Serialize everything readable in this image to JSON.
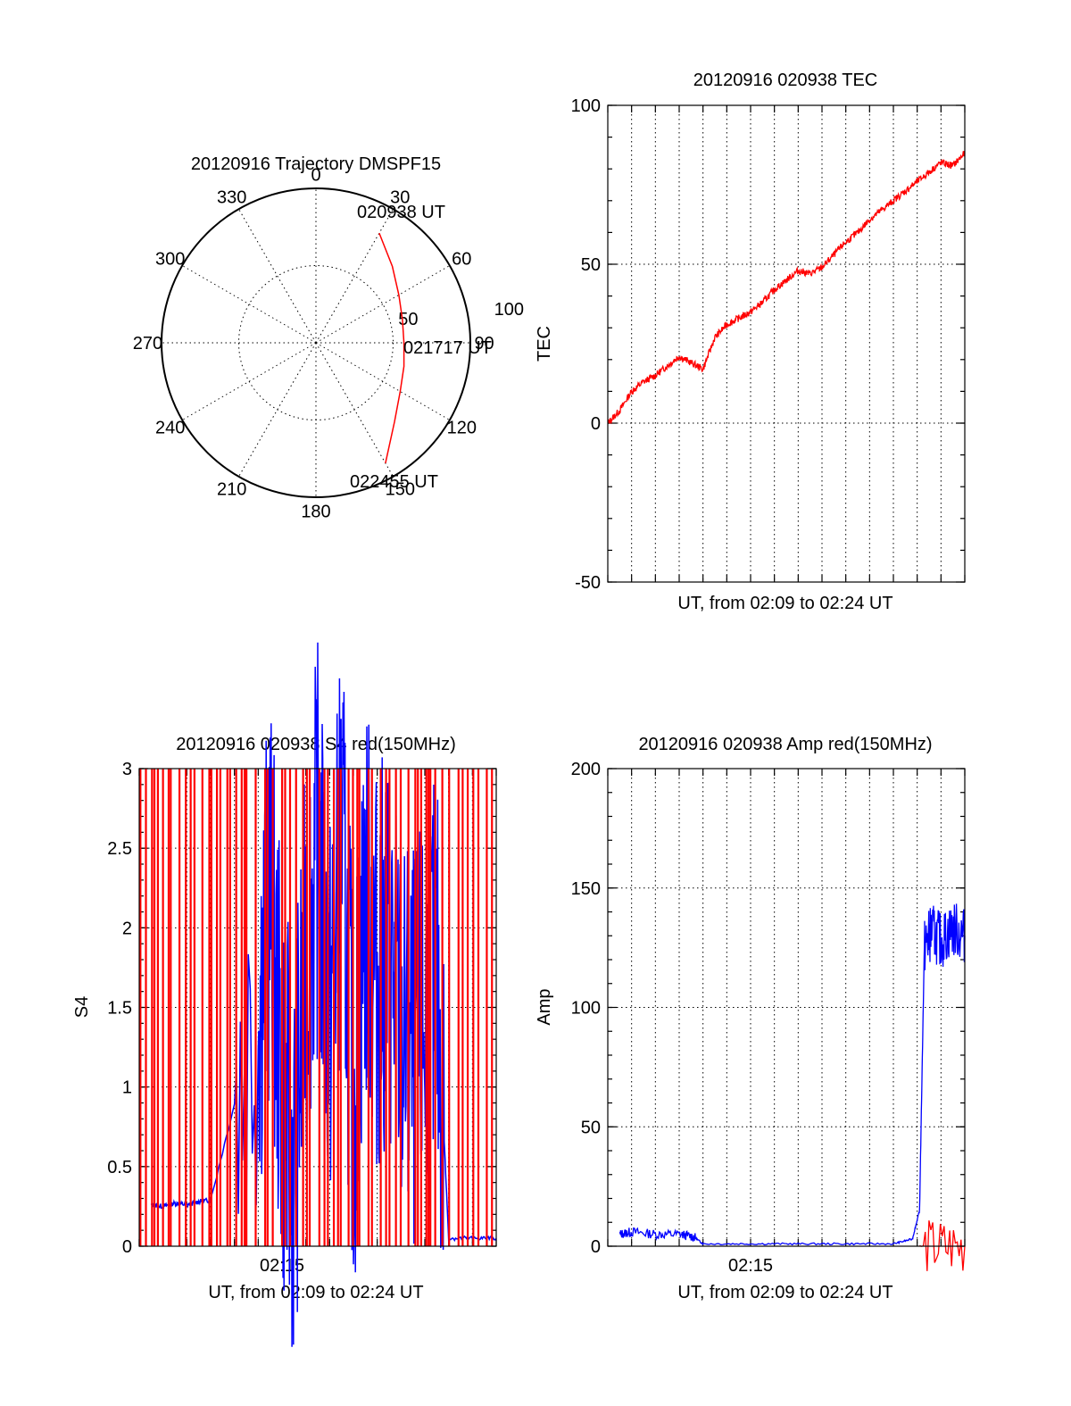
{
  "chart_data": [
    {
      "type": "polar",
      "title": "20120916 Trajectory DMSPF15",
      "azimuth_labels": [
        "0",
        "30",
        "60",
        "90",
        "120",
        "150",
        "180",
        "210",
        "240",
        "270",
        "300",
        "330"
      ],
      "radius_labels": [
        "50",
        "100"
      ],
      "radius_range": [
        0,
        100
      ],
      "grid": true,
      "annotations": [
        "020938 UT",
        "021717 UT",
        "022455 UT"
      ],
      "series": [
        {
          "color": "#ff0000",
          "points": [
            {
              "az": 30,
              "r": 82
            },
            {
              "az": 45,
              "r": 70
            },
            {
              "az": 60,
              "r": 62
            },
            {
              "az": 75,
              "r": 58
            },
            {
              "az": 90,
              "r": 57
            },
            {
              "az": 105,
              "r": 59
            },
            {
              "az": 120,
              "r": 63
            },
            {
              "az": 135,
              "r": 72
            },
            {
              "az": 150,
              "r": 90
            }
          ]
        }
      ]
    },
    {
      "type": "line",
      "title": "20120916 020938 TEC",
      "xlabel": "UT, from 02:09 to 02:24 UT",
      "ylabel": "TEC",
      "ylim": [
        -50,
        100
      ],
      "yticks": [
        "-50",
        "0",
        "50",
        "100"
      ],
      "grid": true,
      "series": [
        {
          "color": "#ff0000",
          "x": [
            0,
            0.5,
            1,
            1.5,
            2,
            2.5,
            3,
            3.5,
            4,
            4.5,
            5,
            5.5,
            6,
            6.5,
            7,
            7.5,
            8,
            8.5,
            9,
            9.5,
            10,
            10.5,
            11,
            11.5,
            12,
            12.5,
            13,
            13.5,
            14,
            14.5,
            15
          ],
          "y": [
            0,
            4,
            10,
            13,
            15,
            18,
            21,
            19,
            17,
            27,
            31,
            33,
            35,
            38,
            42,
            45,
            48,
            47,
            49,
            53,
            57,
            60,
            64,
            67,
            70,
            73,
            76,
            79,
            82,
            81,
            85
          ]
        }
      ]
    },
    {
      "type": "line",
      "title": "20120916 020938 S4 red(150MHz)",
      "xlabel": "UT, from 02:09 to 02:24 UT",
      "ylabel": "S4",
      "xticklabels": [
        "02:15"
      ],
      "ylim": [
        0,
        3
      ],
      "yticks": [
        "0",
        "0.5",
        "1",
        "1.5",
        "2",
        "2.5",
        "3"
      ],
      "grid": true,
      "series": [
        {
          "color": "#0000ff",
          "x": [
            0.5,
            1,
            1.5,
            2,
            2.5,
            3,
            5,
            5.5,
            6,
            6.5,
            7,
            7.5,
            8,
            8.5,
            9,
            9.5,
            10,
            10.5,
            11,
            11.5,
            12,
            12.5,
            13,
            14,
            15
          ],
          "y": [
            0.26,
            0.25,
            0.27,
            0.26,
            0.28,
            0.29,
            1.5,
            2.2,
            1.0,
            0.5,
            1.8,
            2.5,
            1.4,
            2.6,
            0.9,
            2.2,
            1.7,
            1.9,
            1.3,
            1.2,
            1.4,
            1.7,
            0.05,
            0.05,
            0.05
          ]
        },
        {
          "color": "#ff0000",
          "style": "vertical dropouts",
          "values": [
            0,
            3
          ]
        }
      ]
    },
    {
      "type": "line",
      "title": "20120916 020938 Amp red(150MHz)",
      "xlabel": "UT, from 02:09 to 02:24 UT",
      "ylabel": "Amp",
      "xticklabels": [
        "02:15"
      ],
      "ylim": [
        0,
        200
      ],
      "yticks": [
        "0",
        "50",
        "100",
        "150",
        "200"
      ],
      "grid": true,
      "series": [
        {
          "color": "#0000ff",
          "x": [
            0.5,
            1,
            2,
            3,
            3.6,
            4,
            6,
            8,
            10,
            12,
            12.8,
            13.1,
            13.3,
            13.6,
            14,
            14.5,
            15
          ],
          "y": [
            5,
            6,
            5,
            5,
            4,
            1,
            1,
            1,
            1,
            1,
            3,
            15,
            125,
            132,
            128,
            133,
            130
          ]
        },
        {
          "color": "#ff0000",
          "x": [
            13.1,
            15
          ],
          "y": [
            0,
            0
          ]
        }
      ]
    }
  ]
}
